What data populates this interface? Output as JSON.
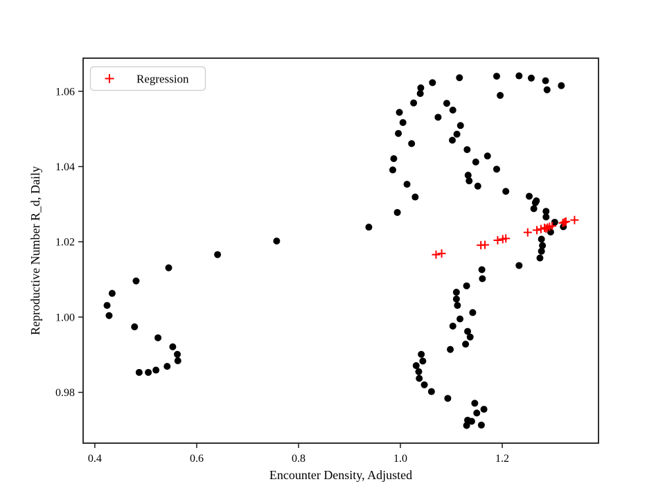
{
  "figure": {
    "background": "#ffffff",
    "frame_color": "#1a1a1a"
  },
  "chart_data": {
    "type": "scatter",
    "title": "",
    "xlabel": "Encounter Density, Adjusted",
    "ylabel": "Reproductive Number R_d, Daily",
    "xlim": [
      0.377,
      1.389
    ],
    "ylim": [
      0.9665,
      1.0688
    ],
    "xticks": [
      0.4,
      0.6,
      0.8,
      1.0,
      1.2
    ],
    "xtick_labels": [
      "0.4",
      "0.6",
      "0.8",
      "1.0",
      "1.2"
    ],
    "yticks": [
      0.98,
      1.0,
      1.02,
      1.04,
      1.06
    ],
    "ytick_labels": [
      "0.98",
      "1.00",
      "1.02",
      "1.04",
      "1.06"
    ],
    "grid": false,
    "legend": {
      "position": "upper left",
      "entries": [
        {
          "label": "Regression",
          "marker": "plus",
          "color": "#ff0000"
        }
      ]
    },
    "series": [
      {
        "name": "observations",
        "marker": "circle",
        "color": "#000000",
        "marker_radius": 5,
        "points": [
          [
            0.641,
            1.0166
          ],
          [
            0.545,
            1.0131
          ],
          [
            0.481,
            1.0096
          ],
          [
            0.434,
            1.0063
          ],
          [
            0.424,
            1.0031
          ],
          [
            0.428,
            1.0004
          ],
          [
            0.478,
            0.9974
          ],
          [
            0.524,
            0.9945
          ],
          [
            0.553,
            0.9921
          ],
          [
            0.562,
            0.9901
          ],
          [
            0.563,
            0.9884
          ],
          [
            0.542,
            0.9869
          ],
          [
            0.52,
            0.9859
          ],
          [
            0.505,
            0.9853
          ],
          [
            0.487,
            0.9853
          ],
          [
            0.757,
            1.0202
          ],
          [
            0.938,
            1.0239
          ],
          [
            0.994,
            1.0278
          ],
          [
            1.116,
            1.0636
          ],
          [
            1.063,
            1.0623
          ],
          [
            1.04,
            1.0609
          ],
          [
            1.039,
            1.0594
          ],
          [
            1.026,
            1.0569
          ],
          [
            1.091,
            1.0568
          ],
          [
            1.103,
            1.055
          ],
          [
            0.998,
            1.0544
          ],
          [
            1.074,
            1.0531
          ],
          [
            1.005,
            1.0517
          ],
          [
            1.118,
            1.0509
          ],
          [
            0.996,
            1.0488
          ],
          [
            1.111,
            1.0486
          ],
          [
            1.022,
            1.0461
          ],
          [
            1.102,
            1.047
          ],
          [
            1.131,
            1.0445
          ],
          [
            0.987,
            1.0421
          ],
          [
            1.148,
            1.0412
          ],
          [
            0.985,
            1.0391
          ],
          [
            1.133,
            1.0377
          ],
          [
            1.135,
            1.0362
          ],
          [
            1.013,
            1.0353
          ],
          [
            1.152,
            1.0348
          ],
          [
            1.029,
            1.0319
          ],
          [
            1.189,
            1.064
          ],
          [
            1.233,
            1.0641
          ],
          [
            1.257,
            1.0635
          ],
          [
            1.285,
            1.0628
          ],
          [
            1.288,
            1.0604
          ],
          [
            1.316,
            1.0615
          ],
          [
            1.196,
            1.0589
          ],
          [
            1.171,
            1.0428
          ],
          [
            1.189,
            1.0393
          ],
          [
            1.207,
            1.0334
          ],
          [
            1.253,
            1.0321
          ],
          [
            1.267,
            1.0309
          ],
          [
            1.265,
            1.0304
          ],
          [
            1.262,
            1.0288
          ],
          [
            1.286,
            1.0281
          ],
          [
            1.286,
            1.0266
          ],
          [
            1.303,
            1.0252
          ],
          [
            1.32,
            1.024
          ],
          [
            1.295,
            1.0226
          ],
          [
            1.277,
            1.0207
          ],
          [
            1.279,
            1.019
          ],
          [
            1.277,
            1.0175
          ],
          [
            1.274,
            1.0157
          ],
          [
            1.233,
            1.0137
          ],
          [
            1.16,
            1.0126
          ],
          [
            1.161,
            1.0102
          ],
          [
            1.13,
            1.0083
          ],
          [
            1.11,
            1.0066
          ],
          [
            1.11,
            1.0048
          ],
          [
            1.112,
            1.0031
          ],
          [
            1.142,
            1.0012
          ],
          [
            1.117,
            0.9995
          ],
          [
            1.103,
            0.9976
          ],
          [
            1.132,
            0.9962
          ],
          [
            1.137,
            0.9947
          ],
          [
            1.128,
            0.9928
          ],
          [
            1.098,
            0.9914
          ],
          [
            1.041,
            0.9901
          ],
          [
            1.044,
            0.9883
          ],
          [
            1.031,
            0.9871
          ],
          [
            1.036,
            0.9855
          ],
          [
            1.037,
            0.9837
          ],
          [
            1.047,
            0.982
          ],
          [
            1.061,
            0.9802
          ],
          [
            1.093,
            0.9784
          ],
          [
            1.146,
            0.9771
          ],
          [
            1.164,
            0.9755
          ],
          [
            1.15,
            0.9745
          ],
          [
            1.132,
            0.9726
          ],
          [
            1.14,
            0.9723
          ],
          [
            1.13,
            0.9712
          ],
          [
            1.159,
            0.9713
          ]
        ]
      },
      {
        "name": "Regression",
        "marker": "plus",
        "color": "#ff0000",
        "marker_half": 6,
        "points": [
          [
            1.07,
            1.0166
          ],
          [
            1.081,
            1.0169
          ],
          [
            1.158,
            1.0191
          ],
          [
            1.166,
            1.0192
          ],
          [
            1.191,
            1.0204
          ],
          [
            1.201,
            1.0207
          ],
          [
            1.207,
            1.0209
          ],
          [
            1.25,
            1.0225
          ],
          [
            1.268,
            1.0231
          ],
          [
            1.276,
            1.0234
          ],
          [
            1.283,
            1.0237
          ],
          [
            1.286,
            1.0235
          ],
          [
            1.289,
            1.0238
          ],
          [
            1.293,
            1.024
          ],
          [
            1.298,
            1.0242
          ],
          [
            1.319,
            1.025
          ],
          [
            1.322,
            1.0252
          ],
          [
            1.325,
            1.0254
          ],
          [
            1.342,
            1.0258
          ]
        ]
      }
    ]
  }
}
